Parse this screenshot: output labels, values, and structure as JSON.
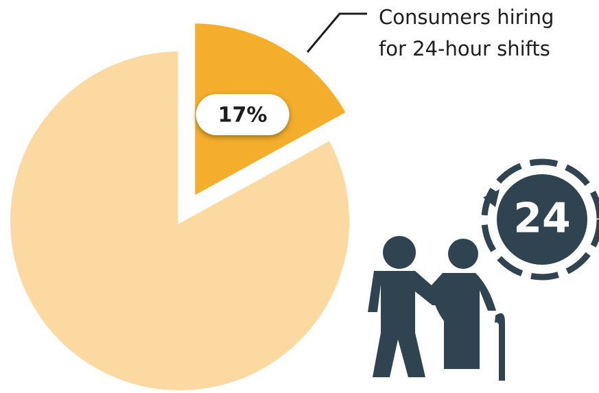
{
  "chart_data": {
    "type": "pie",
    "categories": [
      "Consumers hiring for 24-hour shifts",
      null
    ],
    "values": [
      17,
      83
    ],
    "value_labels": [
      "17%",
      null
    ],
    "colors": [
      "#f4ae2b",
      "#fcd9a0"
    ],
    "exploded": [
      true,
      false
    ],
    "icon_text": "24"
  }
}
